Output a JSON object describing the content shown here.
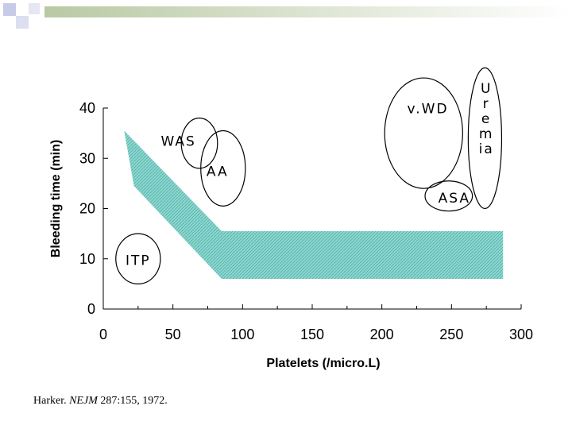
{
  "citation": {
    "author": "Harker.",
    "journal": "NEJM",
    "reference": "287:155, 1972."
  },
  "colors": {
    "region_fill": "#7fcfc8",
    "deco_green": "#b9c9a4",
    "deco_purple": "#9aa0d6"
  },
  "chart_data": {
    "type": "area",
    "title": "",
    "xlabel": "Platelets (/micro.L)",
    "ylabel": "Bleeding time (min)",
    "xlim": [
      0,
      300
    ],
    "ylim": [
      0,
      40
    ],
    "x_ticks": [
      0,
      50,
      100,
      150,
      200,
      250,
      300
    ],
    "y_ticks": [
      0,
      10,
      20,
      30,
      40
    ],
    "grid": false,
    "legend": "none",
    "band": {
      "upper": [
        [
          15,
          35.5
        ],
        [
          85,
          15.5
        ],
        [
          287,
          15.5
        ]
      ],
      "lower": [
        [
          287,
          6
        ],
        [
          85,
          6
        ],
        [
          22,
          24.5
        ]
      ]
    },
    "annotations": [
      {
        "label": "v.WD",
        "lines": [
          "v.WD"
        ],
        "cx": 230,
        "cy": 35,
        "rx": 28,
        "ry": 11,
        "tx": 233,
        "ty": 39
      },
      {
        "label": "Uremia",
        "lines": [
          "U",
          "r",
          "e",
          "m",
          "ia"
        ],
        "cx": 274,
        "cy": 34,
        "rx": 12,
        "ry": 14,
        "tx": 275,
        "ty": 43
      },
      {
        "label": "WAS",
        "lines": [
          "WAS"
        ],
        "cx": 69,
        "cy": 33,
        "rx": 13,
        "ry": 5,
        "tx": 54,
        "ty": 32.5
      },
      {
        "label": "AA",
        "lines": [
          "AA"
        ],
        "cx": 86,
        "cy": 28,
        "rx": 16,
        "ry": 7.5,
        "tx": 82,
        "ty": 26.5
      },
      {
        "label": "ASA",
        "lines": [
          "ASA"
        ],
        "cx": 248,
        "cy": 22.5,
        "rx": 17,
        "ry": 3,
        "tx": 252,
        "ty": 21.2
      },
      {
        "label": "ITP",
        "lines": [
          "ITP"
        ],
        "cx": 25,
        "cy": 10,
        "rx": 16,
        "ry": 5,
        "tx": 25,
        "ty": 8.8
      }
    ]
  }
}
